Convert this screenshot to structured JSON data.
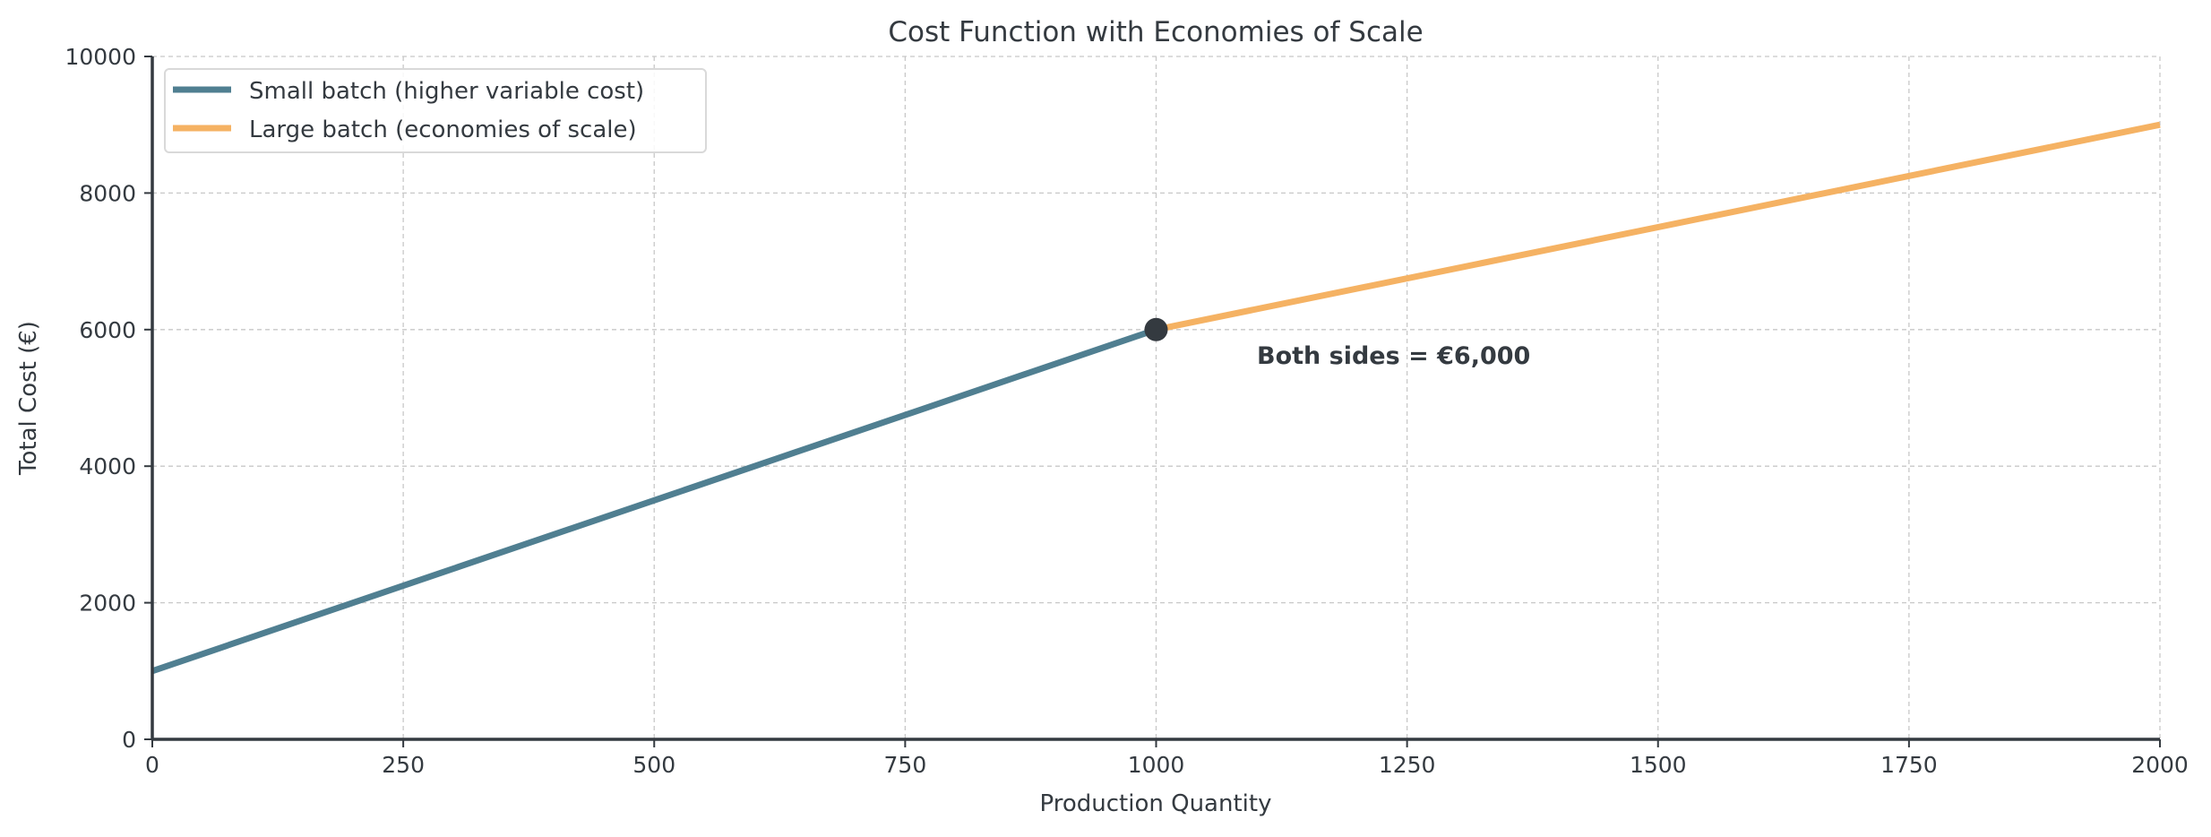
{
  "chart_data": {
    "type": "line",
    "title": "Cost Function with Economies of Scale",
    "xlabel": "Production Quantity",
    "ylabel": "Total Cost (€)",
    "xlim": [
      0,
      2000
    ],
    "ylim": [
      0,
      10000
    ],
    "xticks": [
      0,
      250,
      500,
      750,
      1000,
      1250,
      1500,
      1750,
      2000
    ],
    "yticks": [
      0,
      2000,
      4000,
      6000,
      8000,
      10000
    ],
    "grid": true,
    "legend_position": "top-left",
    "series": [
      {
        "name": "Small batch (higher variable cost)",
        "color": "#507f91",
        "x": [
          0,
          1000
        ],
        "y": [
          1000,
          6000
        ]
      },
      {
        "name": "Large batch (economies of scale)",
        "color": "#f5b263",
        "x": [
          1000,
          2000
        ],
        "y": [
          6000,
          9000
        ]
      }
    ],
    "marker": {
      "x": 1000,
      "y": 6000,
      "color": "#343a40"
    },
    "annotation": {
      "text": "Both sides = €6,000",
      "x": 1100,
      "y": 5500
    }
  }
}
